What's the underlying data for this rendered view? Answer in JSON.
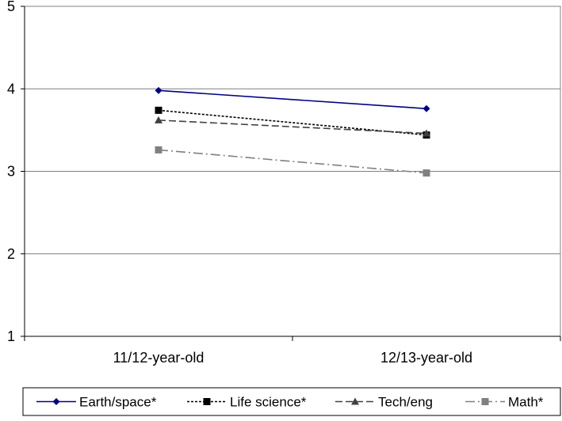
{
  "chart_data": {
    "type": "line",
    "categories": [
      "11/12-year-old",
      "12/13-year-old"
    ],
    "series": [
      {
        "name": "Earth/space*",
        "values": [
          3.98,
          3.76
        ],
        "color": "#000080",
        "dash": "solid",
        "marker": "diamond"
      },
      {
        "name": "Life science*",
        "values": [
          3.74,
          3.44
        ],
        "color": "#000000",
        "dash": "dotted",
        "marker": "square"
      },
      {
        "name": "Tech/eng",
        "values": [
          3.62,
          3.46
        ],
        "color": "#404040",
        "dash": "dashed",
        "marker": "triangle"
      },
      {
        "name": "Math*",
        "values": [
          3.26,
          2.98
        ],
        "color": "#808080",
        "dash": "dashdot",
        "marker": "square"
      }
    ],
    "yticks": [
      "1",
      "2",
      "3",
      "4",
      "5"
    ],
    "ylim": [
      1,
      5
    ],
    "grid": true,
    "legend_position": "bottom"
  }
}
